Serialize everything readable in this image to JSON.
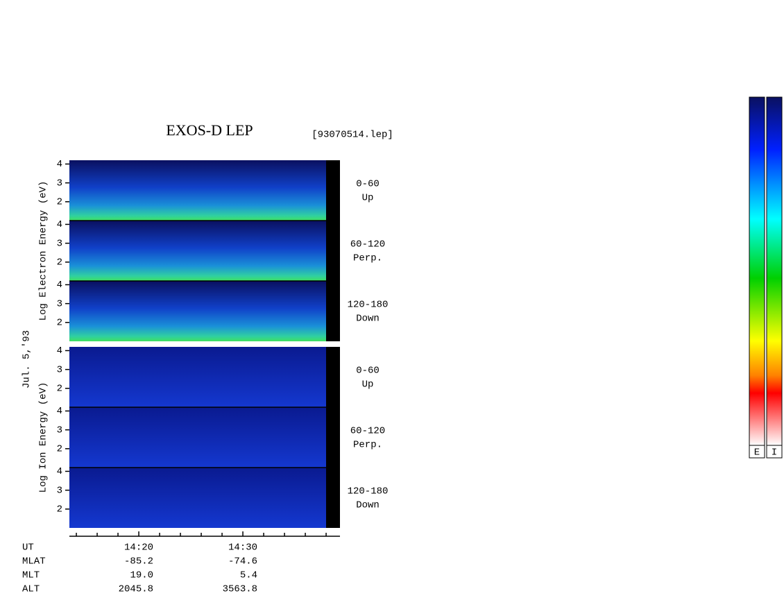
{
  "chart_data": {
    "type": "spectrogram",
    "title": "EXOS-D LEP",
    "file": "[93070514.lep]",
    "date": "Jul. 5,'93",
    "groups": [
      {
        "ylabel": "Log Electron Energy (eV)",
        "panels": [
          {
            "label": [
              "0-60",
              "Up"
            ],
            "ylim": [
              1,
              4.2
            ],
            "yticks": [
              2,
              3,
              4
            ]
          },
          {
            "label": [
              "60-120",
              "Perp."
            ],
            "ylim": [
              1,
              4.2
            ],
            "yticks": [
              2,
              3,
              4
            ]
          },
          {
            "label": [
              "120-180",
              "Down"
            ],
            "ylim": [
              1,
              4.2
            ],
            "yticks": [
              2,
              3,
              4
            ]
          }
        ]
      },
      {
        "ylabel": "Log Ion Energy (eV)",
        "panels": [
          {
            "label": [
              "0-60",
              "Up"
            ],
            "ylim": [
              1,
              4.2
            ],
            "yticks": [
              2,
              3,
              4
            ]
          },
          {
            "label": [
              "60-120",
              "Perp."
            ],
            "ylim": [
              1,
              4.2
            ],
            "yticks": [
              2,
              3,
              4
            ]
          },
          {
            "label": [
              "120-180",
              "Down"
            ],
            "ylim": [
              1,
              4.2
            ],
            "yticks": [
              2,
              3,
              4
            ]
          }
        ]
      }
    ],
    "xlim": [
      853.33,
      879.33
    ],
    "xticks": [
      {
        "value": 860,
        "label": "14:20"
      },
      {
        "value": 870,
        "label": "14:30"
      }
    ],
    "xminorticks": [
      854,
      856,
      858,
      862,
      864,
      866,
      868,
      872,
      874,
      876,
      878
    ],
    "ut_label": "UT",
    "ephemeris": [
      {
        "name": "MLAT",
        "values": [
          "-85.2",
          "-74.6"
        ]
      },
      {
        "name": "MLT",
        "values": [
          "19.0",
          "5.4"
        ]
      },
      {
        "name": "ALT",
        "values": [
          "2045.8",
          "3563.8"
        ]
      }
    ],
    "colorbars": [
      "E",
      "I"
    ]
  }
}
